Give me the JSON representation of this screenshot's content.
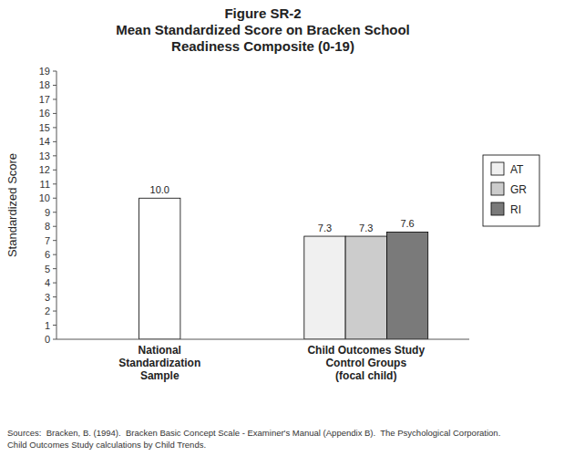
{
  "chart_data": {
    "type": "bar",
    "title": [
      "Figure SR-2",
      "Mean Standardized Score on Bracken School",
      "Readiness Composite (0-19)"
    ],
    "y_label": "Standardized Score",
    "categories": [
      "National\nStandardization\nSample",
      "Child Outcomes Study\nControl Groups\n(focal child)"
    ],
    "series": [
      {
        "color": "#ffffff",
        "values": [
          10.0,
          null
        ],
        "value_labels": [
          "10.0",
          null
        ]
      },
      {
        "name": "AT",
        "color": "#f0f0f0",
        "values": [
          null,
          7.3
        ],
        "value_labels": [
          null,
          "7.3"
        ]
      },
      {
        "name": "GR",
        "color": "#cccccc",
        "values": [
          null,
          7.3
        ],
        "value_labels": [
          null,
          "7.3"
        ]
      },
      {
        "name": "RI",
        "color": "#7a7a7a",
        "values": [
          null,
          7.6
        ],
        "value_labels": [
          null,
          "7.6"
        ]
      }
    ],
    "ylim": [
      0,
      19
    ],
    "yticks": [
      0,
      1,
      2,
      3,
      4,
      5,
      6,
      7,
      8,
      9,
      10,
      11,
      12,
      13,
      14,
      15,
      16,
      17,
      18,
      19
    ],
    "grid": false,
    "legend": "right",
    "data_labels": true,
    "footnote": [
      "Sources:  Bracken, B. (1994).  Bracken Basic Concept Scale - Examiner's Manual (Appendix B).  The Psychological Corporation.",
      "Child Outcomes Study calculations by Child Trends."
    ]
  }
}
